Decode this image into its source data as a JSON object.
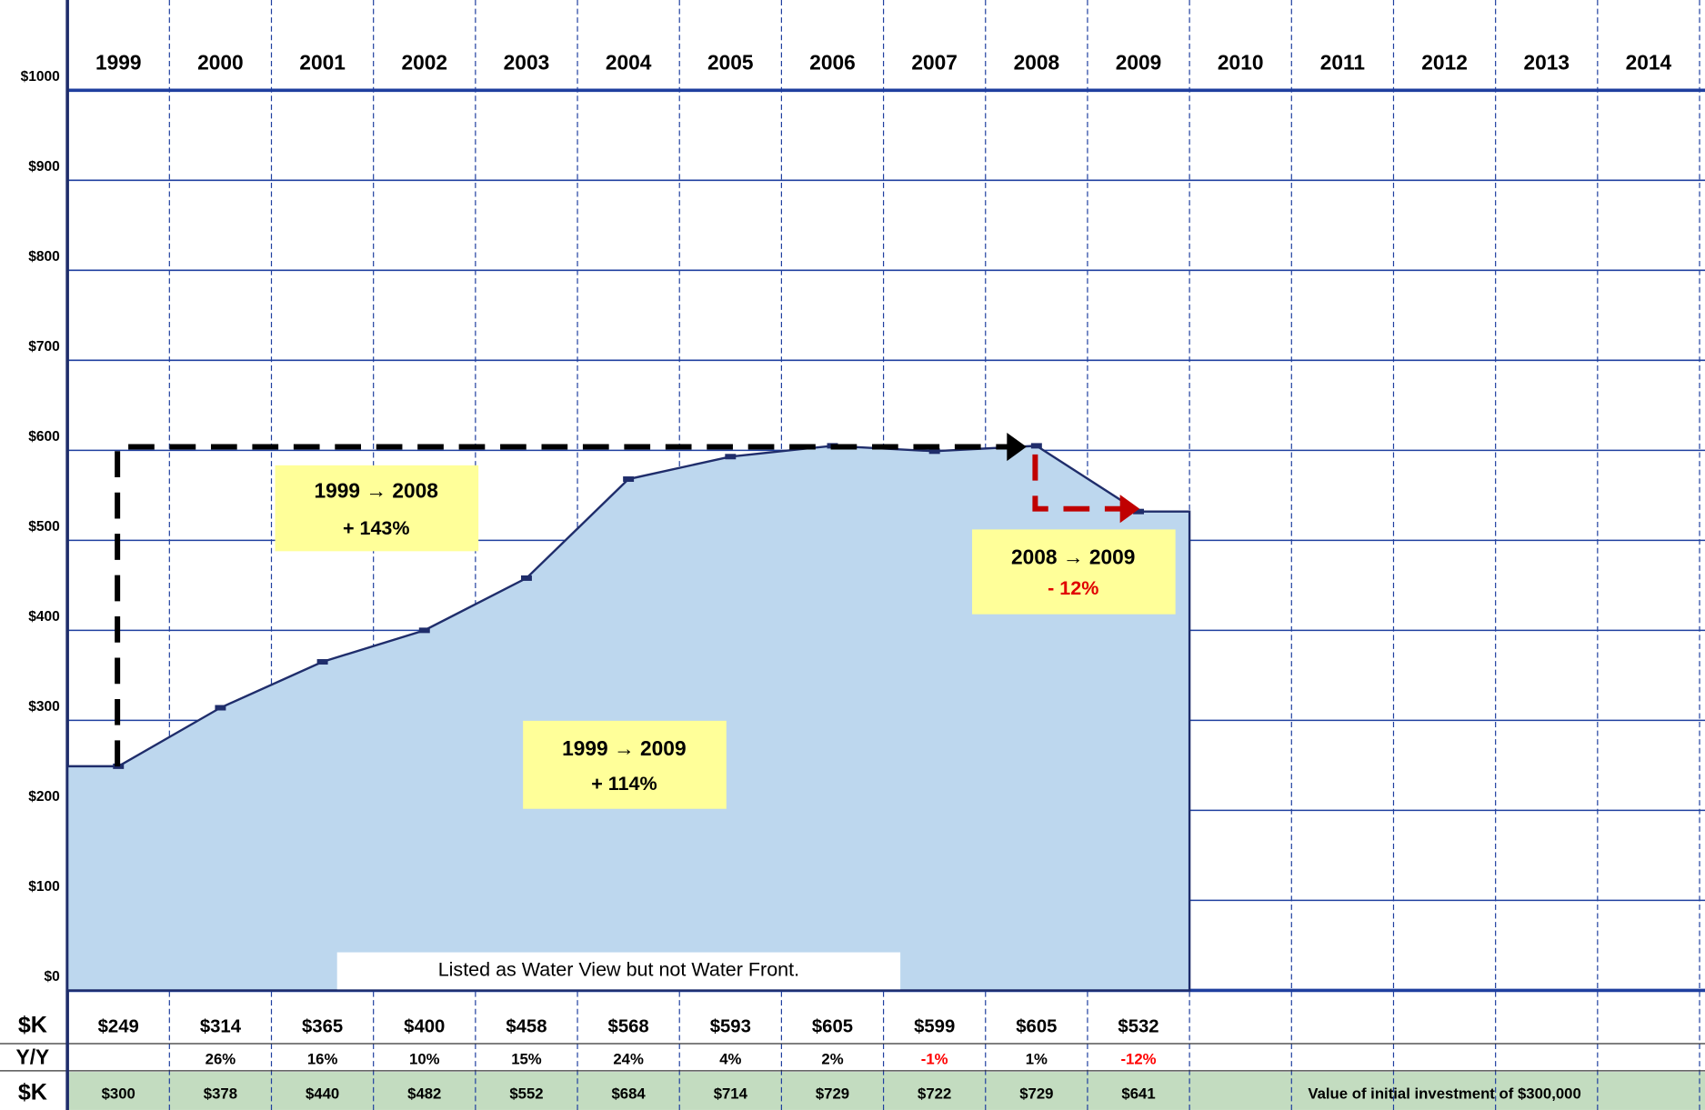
{
  "chart_data": {
    "type": "area",
    "categories": [
      "1999",
      "2000",
      "2001",
      "2002",
      "2003",
      "2004",
      "2005",
      "2006",
      "2007",
      "2008",
      "2009",
      "2010",
      "2011",
      "2012",
      "2013",
      "2014"
    ],
    "values": [
      249,
      314,
      365,
      400,
      458,
      568,
      593,
      605,
      599,
      605,
      532,
      null,
      null,
      null,
      null,
      null
    ],
    "value_labels": [
      "$249",
      "$314",
      "$365",
      "$400",
      "$458",
      "$568",
      "$593",
      "$605",
      "$599",
      "$605",
      "$532",
      null,
      null,
      null,
      null,
      null
    ],
    "color": "#bdd7ee",
    "line_color": "#1f2d6b",
    "grid_color": "#1f3f9f",
    "ylim": [
      0,
      1000
    ],
    "yticks": [
      {
        "value": 0,
        "label": "$0"
      },
      {
        "value": 100,
        "label": "$100"
      },
      {
        "value": 200,
        "label": "$200"
      },
      {
        "value": 300,
        "label": "$300"
      },
      {
        "value": 400,
        "label": "$400"
      },
      {
        "value": 500,
        "label": "$500"
      },
      {
        "value": 600,
        "label": "$600"
      },
      {
        "value": 700,
        "label": "$700"
      },
      {
        "value": 800,
        "label": "$800"
      },
      {
        "value": 900,
        "label": "$900"
      },
      {
        "value": 1000,
        "label": "$1000"
      }
    ],
    "grid": true,
    "row_label": "$K",
    "yoy": {
      "row_label": "Y/Y",
      "negative_color": "#ff0000",
      "values": [
        null,
        26,
        16,
        10,
        15,
        24,
        4,
        2,
        -1,
        1,
        -12,
        null,
        null,
        null,
        null,
        null
      ],
      "value_labels": [
        null,
        "26%",
        "16%",
        "10%",
        "15%",
        "24%",
        "4%",
        "2%",
        "-1%",
        "1%",
        "-12%",
        null,
        null,
        null,
        null,
        null
      ]
    },
    "investment": {
      "row_label": "$K",
      "color": "#c3dcc0",
      "note": "Value of initial investment of $300,000",
      "values": [
        300,
        378,
        440,
        482,
        552,
        684,
        714,
        729,
        722,
        729,
        641,
        null,
        null,
        null,
        null,
        null
      ],
      "value_labels": [
        "$300",
        "$378",
        "$440",
        "$482",
        "$552",
        "$684",
        "$714",
        "$729",
        "$722",
        "$729",
        "$641",
        null,
        null,
        null,
        null,
        null
      ]
    },
    "annotations": [
      {
        "title": "1999 → 2008",
        "text": "+ 143%"
      },
      {
        "title": "2008 → 2009",
        "text": "- 12%"
      },
      {
        "title": "1999 → 2009",
        "text": "+ 114%"
      }
    ],
    "note": "Listed as Water View but not Water Front."
  }
}
